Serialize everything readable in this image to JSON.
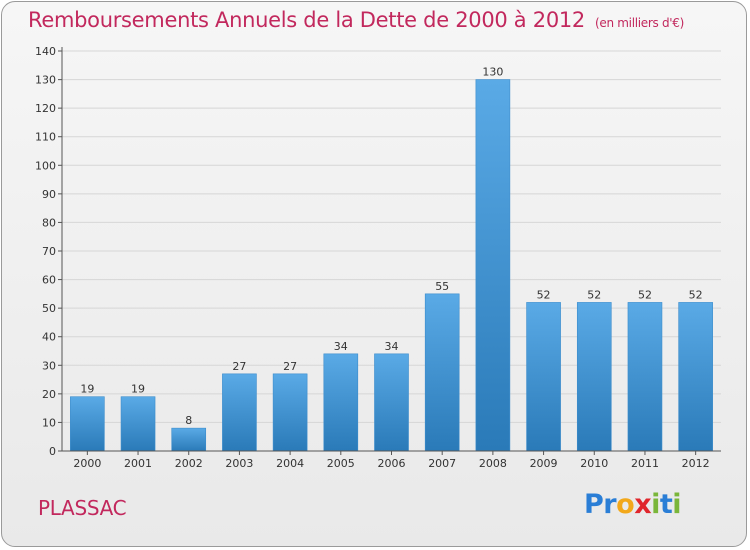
{
  "title": "Remboursements Annuels de la Dette de 2000 à 2012",
  "subtitle": "(en milliers d'€)",
  "location": "PLASSAC",
  "logo": {
    "text": "Proxiti",
    "letters": [
      {
        "char": "P",
        "color": "#2a7ed6"
      },
      {
        "char": "r",
        "color": "#2a7ed6"
      },
      {
        "char": "o",
        "color": "#f2a81b"
      },
      {
        "char": "x",
        "color": "#e0262c"
      },
      {
        "char": "i",
        "color": "#7ab63a"
      },
      {
        "char": "t",
        "color": "#2a7ed6"
      },
      {
        "char": "i",
        "color": "#7ab63a"
      }
    ]
  },
  "chart_data": {
    "type": "bar",
    "title": "Remboursements Annuels de la Dette de 2000 à 2012",
    "subtitle": "(en milliers d'€)",
    "categories": [
      "2000",
      "2001",
      "2002",
      "2003",
      "2004",
      "2005",
      "2006",
      "2007",
      "2008",
      "2009",
      "2010",
      "2011",
      "2012"
    ],
    "values": [
      19,
      19,
      8,
      27,
      27,
      34,
      34,
      55,
      130,
      52,
      52,
      52,
      52
    ],
    "ylim": [
      0,
      140
    ],
    "yticks": [
      0,
      10,
      20,
      30,
      40,
      50,
      60,
      70,
      80,
      90,
      100,
      110,
      120,
      130,
      140
    ],
    "grid": true,
    "bar_color_top": "#5aaae6",
    "bar_color_bottom": "#2a7ab8"
  }
}
